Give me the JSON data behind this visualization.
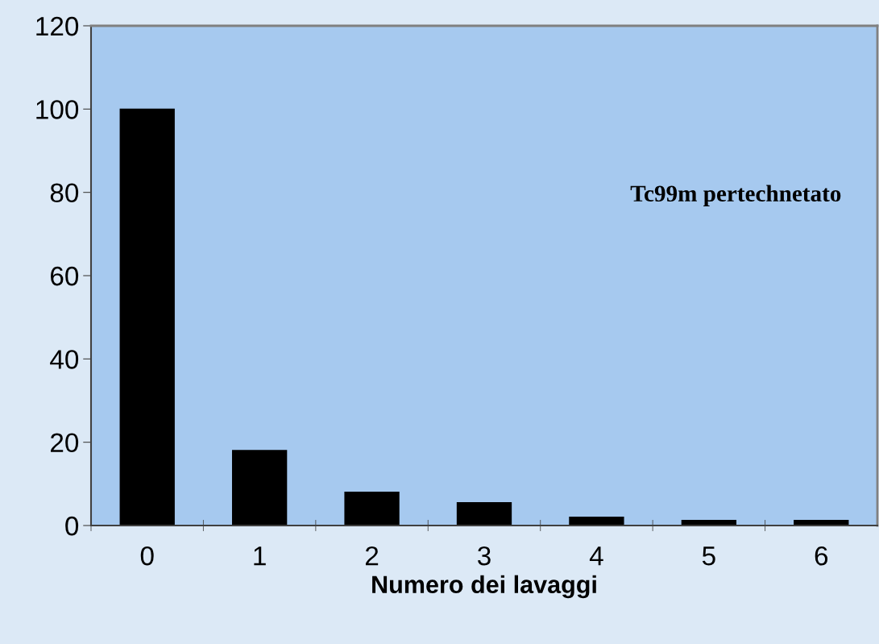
{
  "chart_data": {
    "type": "bar",
    "xlabel": "Numero dei lavaggi",
    "categories": [
      "0",
      "1",
      "2",
      "3",
      "4",
      "5",
      "6"
    ],
    "series": [
      {
        "color": "#000000",
        "values": [
          100,
          18,
          8,
          5.5,
          2,
          1.2,
          1.2
        ]
      }
    ],
    "ylim": [
      0,
      120
    ],
    "yticks": [
      0,
      20,
      40,
      60,
      80,
      100,
      120
    ],
    "grid": false,
    "legend": false,
    "annotations": [
      "Tc99m pertechnetato"
    ]
  }
}
